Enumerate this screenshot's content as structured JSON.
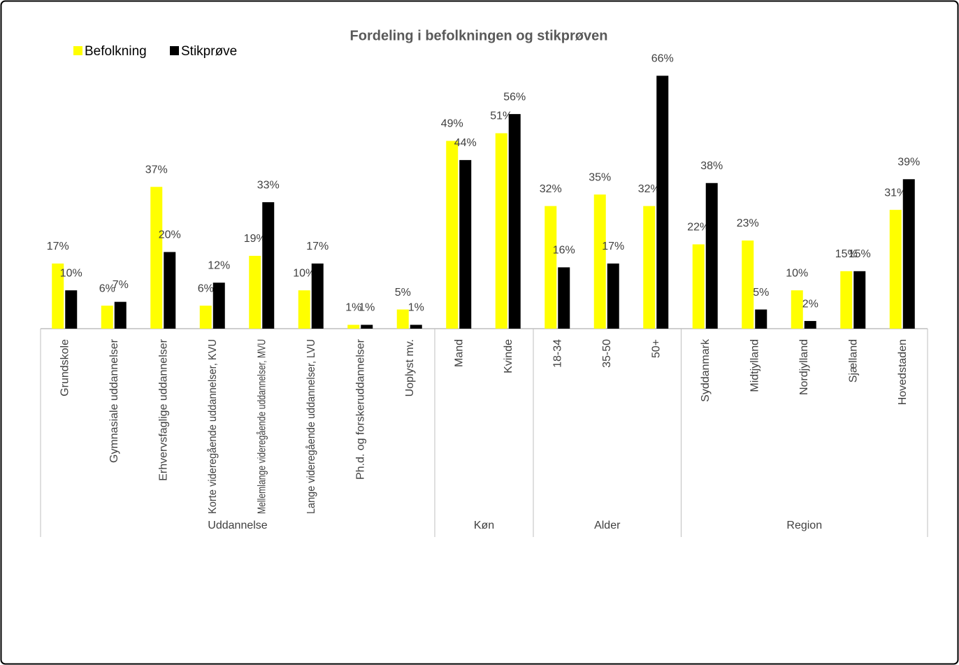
{
  "chart_data": {
    "type": "bar",
    "title": "Fordeling i befolkningen og stikprøven",
    "groups": [
      {
        "label": "Uddannelse",
        "categories": [
          "Grundskole",
          "Gymnasiale uddannelser",
          "Erhvervsfaglige uddannelser",
          "Korte videregående uddannelser, KVU",
          "Mellemlange videregående uddannelser, MVU",
          "Lange videregående uddannelser, LVU",
          "Ph.d. og forskeruddannelser",
          "Uoplyst mv."
        ]
      },
      {
        "label": "Køn",
        "categories": [
          "Mand",
          "Kvinde"
        ]
      },
      {
        "label": "Alder",
        "categories": [
          "18-34",
          "35-50",
          "50+"
        ]
      },
      {
        "label": "Region",
        "categories": [
          "Syddanmark",
          "Midtjylland",
          "Nordjylland",
          "Sjælland",
          "Hovedstaden"
        ]
      }
    ],
    "series": [
      {
        "name": "Befolkning",
        "color": "#ffff00",
        "values": [
          17,
          6,
          37,
          6,
          19,
          10,
          1,
          5,
          49,
          51,
          32,
          35,
          32,
          22,
          23,
          10,
          15,
          31
        ],
        "value_labels": [
          "17%",
          "6%",
          "37%",
          "6%",
          "19%",
          "10%",
          "1%",
          "5%",
          "49%",
          "51%",
          "32%",
          "35%",
          "32%",
          "22%",
          "23%",
          "10%",
          "15%",
          "31%"
        ]
      },
      {
        "name": "Stikprøve",
        "color": "#000000",
        "values": [
          10,
          7,
          20,
          12,
          33,
          17,
          1,
          1,
          44,
          56,
          16,
          17,
          66,
          38,
          5,
          2,
          15,
          39
        ],
        "value_labels": [
          "10%",
          "7%",
          "20%",
          "12%",
          "33%",
          "17%",
          "1%",
          "1%",
          "44%",
          "56%",
          "16%",
          "17%",
          "66%",
          "38%",
          "5%",
          "2%",
          "15%",
          "39%"
        ]
      }
    ],
    "legend": "top-left"
  }
}
